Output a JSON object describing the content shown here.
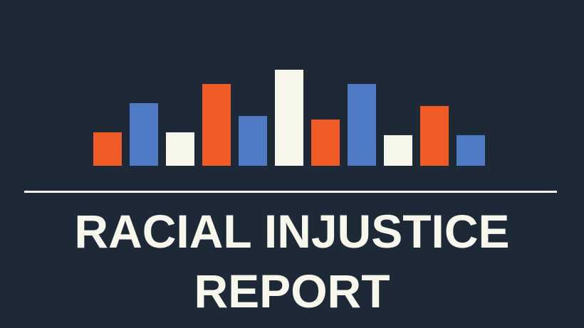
{
  "colors": {
    "background": "#1d2936",
    "cream": "#f8f7ec",
    "orange": "#f05a24",
    "blue": "#4e7bc3",
    "divider": "#f8f7ec"
  },
  "graphic": {
    "bar_levels": [
      0.35,
      0.65,
      0.35,
      0.85,
      0.52,
      1.0,
      0.48,
      0.85,
      0.32,
      0.62,
      0.32
    ],
    "bar_colors": [
      "orange",
      "blue",
      "cream",
      "orange",
      "blue",
      "cream",
      "orange",
      "blue",
      "cream",
      "orange",
      "blue"
    ]
  },
  "title": {
    "line1": "RACIAL INJUSTICE",
    "line2": "REPORT"
  }
}
